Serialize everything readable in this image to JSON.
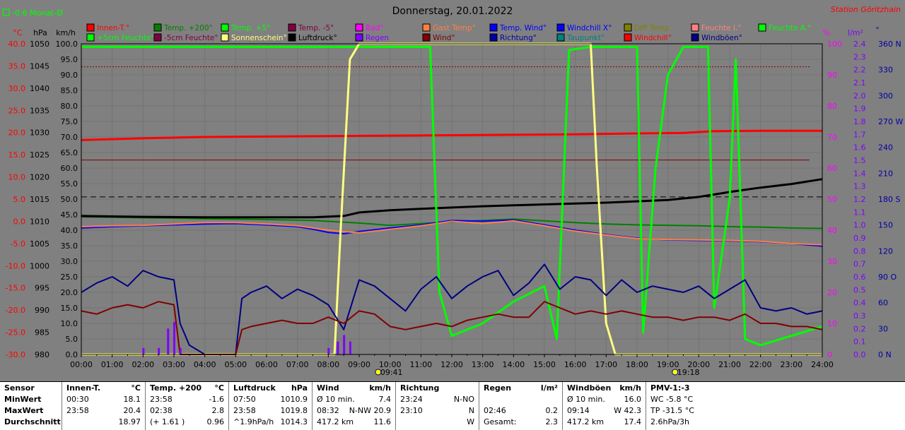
{
  "header": {
    "monat_label": "-0.6 Monat-Ø",
    "title": "Donnerstag, 20.01.2022",
    "station": "Station Göritzhain",
    "unit_celsius": "°C",
    "unit_hpa": "hPa",
    "unit_kmh": "km/h",
    "unit_percent": "%",
    "unit_lm2": "l/m²",
    "unit_deg": "°"
  },
  "legend": [
    {
      "label": "Innen-T.°",
      "color": "#ff0000"
    },
    {
      "label": "Temp. +200°",
      "color": "#008000"
    },
    {
      "label": "Temp. +5°",
      "color": "#00ff00"
    },
    {
      "label": "Temp. -5°",
      "color": "#800040"
    },
    {
      "label": "Bad°",
      "color": "#ff00ff"
    },
    {
      "label": "Gast Temp°",
      "color": "#ff8040"
    },
    {
      "label": "Temp. Wind°",
      "color": "#0000ff"
    },
    {
      "label": "Windchill X°",
      "color": "#0000ff"
    },
    {
      "label": "Diff Temp.",
      "color": "#808000"
    },
    {
      "label": "Feuchte I.°",
      "color": "#ff8080"
    },
    {
      "label": "Feuchte A.°",
      "color": "#00ff00"
    },
    {
      "label": "+5cm Feuchte°",
      "color": "#00ff00"
    },
    {
      "label": "-5cm Feuchte°",
      "color": "#800040"
    },
    {
      "label": "Sonnenschein°",
      "color": "#ffff80"
    },
    {
      "label": "Luftdruck°",
      "color": "#000000"
    },
    {
      "label": "Regen",
      "color": "#8000ff"
    },
    {
      "label": "Wind°",
      "color": "#800000"
    },
    {
      "label": "Richtung°",
      "color": "#0000a0"
    },
    {
      "label": "Taupunkt°",
      "color": "#008080"
    },
    {
      "label": "Windchill°",
      "color": "#ff0000"
    },
    {
      "label": "Windböen°",
      "color": "#000080"
    }
  ],
  "chart_data": {
    "type": "line",
    "title": "Donnerstag, 20.01.2022",
    "x_ticks": [
      "00:00",
      "01:00",
      "02:00",
      "03:00",
      "04:00",
      "05:00",
      "06:00",
      "07:00",
      "08:00",
      "09:00",
      "10:00",
      "11:00",
      "12:00",
      "13:00",
      "14:00",
      "15:00",
      "16:00",
      "17:00",
      "18:00",
      "19:00",
      "20:00",
      "21:00",
      "22:00",
      "23:00",
      "24:00"
    ],
    "xlim": [
      0,
      24
    ],
    "axes": {
      "temperature_c": [
        "40.0",
        "35.0",
        "30.0",
        "25.0",
        "20.0",
        "15.0",
        "10.0",
        "5.0",
        "0.0",
        "-5.0",
        "-10.0",
        "-15.0",
        "-20.0",
        "-25.0",
        "-30.0"
      ],
      "pressure_hpa": [
        "1050",
        "1045",
        "1040",
        "1035",
        "1030",
        "1025",
        "1020",
        "1015",
        "1010",
        "1005",
        "1000",
        "995",
        "990",
        "985",
        "980"
      ],
      "wind_kmh": [
        "100.0",
        "95.0",
        "90.0",
        "85.0",
        "80.0",
        "75.0",
        "70.0",
        "65.0",
        "60.0",
        "55.0",
        "50.0",
        "45.0",
        "40.0",
        "35.0",
        "30.0",
        "25.0",
        "20.0",
        "15.0",
        "10.0",
        "5.0",
        "0.0"
      ],
      "humidity_pct": [
        "100",
        "90",
        "80",
        "70",
        "60",
        "50",
        "40",
        "30",
        "20",
        "10",
        "0"
      ],
      "rain_lm2": [
        "2.4",
        "2.3",
        "2.2",
        "2.1",
        "2.0",
        "1.9",
        "1.8",
        "1.7",
        "1.6",
        "1.5",
        "1.4",
        "1.3",
        "1.2",
        "1.1",
        "1.0",
        "0.9",
        "0.8",
        "0.7",
        "0.6",
        "0.5",
        "0.4",
        "0.3",
        "0.2",
        "0.1",
        "0.0"
      ],
      "direction_deg": [
        "360 N",
        "330",
        "300",
        "270 W",
        "240",
        "210",
        "180 S",
        "150",
        "120",
        "90 O",
        "60",
        "30",
        "0 N"
      ]
    },
    "sun_marks": [
      "09:41",
      "19:18"
    ],
    "series": [
      {
        "name": "Innen-T.°",
        "axis": "temperature_c",
        "x": [
          0,
          2,
          4,
          6,
          8,
          10,
          12,
          14,
          16,
          18,
          19.5,
          20.5,
          22,
          24
        ],
        "y": [
          18.3,
          18.7,
          19.0,
          19.1,
          19.2,
          19.3,
          19.4,
          19.5,
          19.6,
          19.8,
          19.9,
          20.3,
          20.4,
          20.4
        ]
      },
      {
        "name": "Temp. +200°",
        "axis": "temperature_c",
        "x": [
          0,
          2,
          4,
          6,
          7.5,
          9,
          10,
          11,
          12,
          13,
          14,
          15,
          16,
          17,
          18,
          19,
          20,
          21,
          22,
          23,
          24
        ],
        "y": [
          1.0,
          0.8,
          0.6,
          0.4,
          0.2,
          -0.4,
          -0.9,
          -0.5,
          -0.1,
          0.2,
          0.5,
          0.1,
          -0.3,
          -0.6,
          -0.8,
          -0.9,
          -1.0,
          -1.2,
          -1.3,
          -1.5,
          -1.6
        ]
      },
      {
        "name": "Luftdruck°",
        "axis": "pressure_hpa",
        "x": [
          0,
          2,
          4,
          6,
          7.5,
          8.5,
          9,
          10,
          11,
          12,
          13,
          14,
          15,
          16,
          17,
          18,
          19,
          20,
          21,
          22,
          23,
          24
        ],
        "y": [
          1011.2,
          1011.0,
          1010.9,
          1010.9,
          1010.9,
          1011.2,
          1012.0,
          1012.5,
          1012.8,
          1013.1,
          1013.4,
          1013.6,
          1013.8,
          1014.0,
          1014.2,
          1014.5,
          1014.8,
          1015.5,
          1016.6,
          1017.6,
          1018.4,
          1019.5
        ]
      },
      {
        "name": "Temp. Wind°",
        "axis": "temperature_c",
        "x": [
          0,
          1,
          2,
          3,
          4,
          5,
          6,
          7,
          7.5,
          8,
          8.5,
          9,
          10,
          11,
          12,
          13,
          14,
          15,
          16,
          17,
          18,
          19,
          20,
          21,
          22,
          23,
          24
        ],
        "y": [
          -1.5,
          -1.2,
          -1.0,
          -0.8,
          -0.6,
          -0.5,
          -0.8,
          -1.2,
          -1.8,
          -2.5,
          -2.8,
          -2.3,
          -1.5,
          -0.8,
          0.2,
          0.0,
          0.3,
          -0.8,
          -2.0,
          -3.0,
          -3.8,
          -4.2,
          -4.3,
          -4.4,
          -4.6,
          -5.0,
          -5.6
        ]
      },
      {
        "name": "Gast Temp°",
        "axis": "temperature_c",
        "x": [
          0,
          1,
          2,
          3,
          4,
          5,
          6,
          7,
          8,
          9,
          10,
          11,
          12,
          13,
          14,
          15,
          16,
          17,
          18,
          19,
          20,
          21,
          22,
          23,
          24
        ],
        "y": [
          -1.2,
          -1.0,
          -0.9,
          -0.6,
          -0.3,
          -0.3,
          -0.6,
          -1.0,
          -2.0,
          -2.6,
          -1.8,
          -1.0,
          0.0,
          -0.5,
          0.1,
          -1.0,
          -2.2,
          -3.1,
          -3.9,
          -4.1,
          -4.2,
          -4.3,
          -4.5,
          -5.0,
          -5.3
        ]
      },
      {
        "name": "+5cm Feuchte°",
        "axis": "humidity_pct",
        "x": [
          0,
          2,
          4,
          6,
          8,
          8.5,
          9,
          10,
          11,
          11.3,
          11.6,
          12,
          13,
          14,
          15,
          15.4,
          15.8,
          16.5,
          17,
          17.5,
          18,
          18.2,
          18.6,
          19,
          19.5,
          20.3,
          20.5,
          21,
          21.2,
          21.5,
          22,
          23,
          24
        ],
        "y": [
          99,
          99,
          99,
          99,
          99,
          99,
          99,
          99,
          99,
          99,
          20,
          6,
          10,
          17,
          22,
          5,
          98,
          99,
          99,
          99,
          99,
          7,
          60,
          90,
          99,
          99,
          15,
          50,
          95,
          5,
          3,
          6,
          9
        ]
      },
      {
        "name": "Sonnenschein°",
        "axis": "humidity_pct",
        "x": [
          0,
          8.2,
          8.4,
          8.7,
          9,
          10,
          11,
          12,
          13,
          14,
          15,
          16,
          16.5,
          16.7,
          17,
          17.3,
          24
        ],
        "y": [
          0,
          0,
          40,
          95,
          100,
          100,
          100,
          100,
          100,
          100,
          100,
          100,
          100,
          60,
          10,
          0,
          0
        ]
      },
      {
        "name": "Windböen°",
        "axis": "wind_kmh",
        "x": [
          0,
          0.5,
          1,
          1.5,
          2,
          2.5,
          3,
          3.2,
          3.5,
          4,
          5,
          5.2,
          5.5,
          6,
          6.5,
          7,
          7.5,
          8,
          8.5,
          9,
          9.5,
          10,
          10.5,
          11,
          11.5,
          12,
          12.5,
          13,
          13.5,
          14,
          14.5,
          15,
          15.5,
          16,
          16.5,
          17,
          17.5,
          18,
          18.5,
          19,
          19.5,
          20,
          20.5,
          21,
          21.5,
          22,
          22.5,
          23,
          23.5,
          24
        ],
        "y": [
          20,
          23,
          25,
          22,
          27,
          25,
          24,
          10,
          3,
          0,
          0,
          18,
          20,
          22,
          18,
          21,
          19,
          16,
          8,
          24,
          22,
          18,
          14,
          21,
          25,
          18,
          22,
          25,
          27,
          19,
          23,
          29,
          21,
          25,
          24,
          19,
          24,
          20,
          22,
          21,
          20,
          22,
          18,
          21,
          24,
          15,
          14,
          15,
          13,
          14
        ]
      },
      {
        "name": "Wind°",
        "axis": "wind_kmh",
        "x": [
          0,
          0.5,
          1,
          1.5,
          2,
          2.5,
          3,
          3.2,
          5,
          5.2,
          5.5,
          6,
          6.5,
          7,
          7.5,
          8,
          8.5,
          9,
          9.5,
          10,
          10.5,
          11,
          11.5,
          12,
          12.5,
          13,
          13.5,
          14,
          14.5,
          15,
          15.5,
          16,
          16.5,
          17,
          17.5,
          18,
          18.5,
          19,
          19.5,
          20,
          20.5,
          21,
          21.5,
          22,
          22.5,
          23,
          23.5,
          24
        ],
        "y": [
          14,
          13,
          15,
          16,
          15,
          17,
          16,
          0,
          0,
          8,
          9,
          10,
          11,
          10,
          10,
          12,
          10,
          14,
          13,
          9,
          8,
          9,
          10,
          9,
          11,
          12,
          13,
          12,
          12,
          17,
          15,
          13,
          14,
          13,
          14,
          13,
          12,
          12,
          11,
          12,
          12,
          11,
          13,
          10,
          10,
          9,
          9,
          8
        ]
      },
      {
        "name": "Regen",
        "axis": "rain_lm2",
        "x": [
          0,
          1.5,
          2,
          2.5,
          2.8,
          3,
          3.2,
          4,
          8,
          8.3,
          8.5,
          8.7,
          9,
          24
        ],
        "y": [
          0,
          0,
          0.05,
          0.05,
          0.2,
          0.25,
          0.05,
          0,
          0.05,
          0.1,
          0.15,
          0.1,
          0,
          0
        ]
      }
    ]
  },
  "table": {
    "labels": {
      "sensor": "Sensor",
      "min": "MinWert",
      "max": "MaxWert",
      "avg": "Durchschnitt"
    },
    "innen": {
      "title": "Innen-T.",
      "unit": "°C",
      "min_time": "00:30",
      "min_val": "18.1",
      "max_time": "23:58",
      "max_val": "20.4",
      "avg_val": "18.97"
    },
    "temp200": {
      "title": "Temp. +200",
      "unit": "°C",
      "min_time": "23:58",
      "min_val": "-1.6",
      "max_time": "02:38",
      "max_val": "2.8",
      "avg_note": "(+ 1.61 )",
      "avg_val": "0.96"
    },
    "luftdruck": {
      "title": "Luftdruck",
      "unit": "hPa",
      "min_time": "07:50",
      "min_val": "1010.9",
      "max_time": "23:58",
      "max_val": "1019.8",
      "avg_note": "^1.9hPa/h",
      "avg_val": "1014.3"
    },
    "wind": {
      "title": "Wind",
      "unit": "km/h",
      "min_label": "Ø 10 min.",
      "min_val": "7.4",
      "max_time": "08:32",
      "max_dir": "N-NW",
      "max_val": "20.9",
      "avg_note": "417.2 km",
      "avg_val": "11.6"
    },
    "richtung": {
      "title": "Richtung",
      "min_time": "23:24",
      "min_val": "N-NO",
      "max_time": "23:10",
      "max_val": "N",
      "avg_val": "W"
    },
    "regen": {
      "title": "Regen",
      "unit": "l/m²",
      "max_time": "02:46",
      "max_val": "0.2",
      "avg_label": "Gesamt:",
      "avg_val": "2.3"
    },
    "boeen": {
      "title": "Windböen",
      "unit": "km/h",
      "min_label": "Ø 10 min.",
      "min_val": "16.0",
      "max_time": "09:14",
      "max_val": "W 42.3",
      "avg_note": "417.2 km",
      "avg_val": "17.4"
    },
    "pmv": {
      "title": "PMV-1:-3",
      "wc": "WC -5.8 °C",
      "tp": "TP -31.5 °C",
      "trend": "2.6hPa/3h"
    }
  }
}
